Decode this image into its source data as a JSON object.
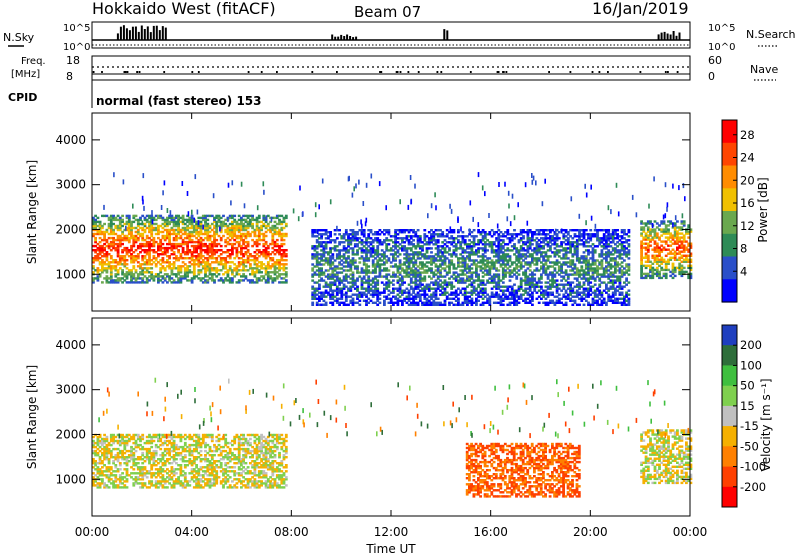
{
  "header": {
    "station": "Hokkaido West (fitACF)",
    "beam": "Beam 07",
    "date": "16/Jan/2019"
  },
  "top_strip": {
    "nsky_label": "N.Sky",
    "nsearch_label": "N.Search",
    "freq_label_1": "Freq.",
    "freq_label_2": "[MHz]",
    "nave_label": "Nave",
    "cpid_label": "CPID",
    "cpid_text": "normal (fast stereo) 153",
    "noise_left_ticks": [
      "10^5",
      "10^0"
    ],
    "noise_right_ticks": [
      "10^5",
      "10^0"
    ],
    "freq_ticks": [
      "18",
      "8"
    ],
    "nave_ticks": [
      "60",
      "0"
    ]
  },
  "colors": {
    "power_scale": [
      "#0000ff",
      "#2a4fc9",
      "#2e8b57",
      "#6aa84f",
      "#f0c000",
      "#ff8c00",
      "#ff4500",
      "#ff0000"
    ],
    "velocity_scale": [
      "#1f3fbf",
      "#2e6e3a",
      "#3fbf3f",
      "#7fd04f",
      "#c0c0c0",
      "#f5b000",
      "#ff8000",
      "#ff4000",
      "#ff0000"
    ]
  },
  "chart_data": [
    {
      "type": "heatmap",
      "title": "",
      "xlabel": "",
      "ylabel": "Slant Range [km]",
      "x_ticks": [
        "00:00",
        "04:00",
        "08:00",
        "12:00",
        "16:00",
        "20:00",
        "00:00"
      ],
      "y_ticks": [
        "1000",
        "2000",
        "3000",
        "4000"
      ],
      "ylim": [
        180,
        4600
      ],
      "xlim_hours": [
        0,
        24
      ],
      "colorbar_label": "Power [dB]",
      "colorbar_ticks": [
        "28",
        "24",
        "20",
        "16",
        "12",
        "8",
        "4"
      ],
      "colorbar_range": [
        0,
        30
      ],
      "regions": [
        {
          "t0": 0.0,
          "t1": 7.8,
          "r0": 800,
          "r1": 2300,
          "value": 22
        },
        {
          "t0": 8.8,
          "t1": 21.5,
          "r0": 300,
          "r1": 2000,
          "value": 8
        },
        {
          "t0": 22.0,
          "t1": 24.0,
          "r0": 900,
          "r1": 2200,
          "value": 20
        }
      ]
    },
    {
      "type": "heatmap",
      "title": "",
      "xlabel": "Time UT",
      "ylabel": "Slant Range [km]",
      "x_ticks": [
        "00:00",
        "04:00",
        "08:00",
        "12:00",
        "16:00",
        "20:00",
        "00:00"
      ],
      "y_ticks": [
        "1000",
        "2000",
        "3000",
        "4000"
      ],
      "ylim": [
        180,
        4600
      ],
      "xlim_hours": [
        0,
        24
      ],
      "colorbar_label": "Velocity [m s⁻¹]",
      "colorbar_ticks": [
        "200",
        "100",
        "50",
        "15",
        "-15",
        "-50",
        "-100",
        "-200"
      ],
      "colorbar_range": [
        -250,
        250
      ],
      "regions": [
        {
          "t0": 0.0,
          "t1": 7.8,
          "r0": 800,
          "r1": 2000,
          "value": 0
        },
        {
          "t0": 15.0,
          "t1": 19.5,
          "r0": 600,
          "r1": 1800,
          "value": -80
        },
        {
          "t0": 22.0,
          "t1": 24.0,
          "r0": 900,
          "r1": 2100,
          "value": 0
        }
      ]
    }
  ]
}
